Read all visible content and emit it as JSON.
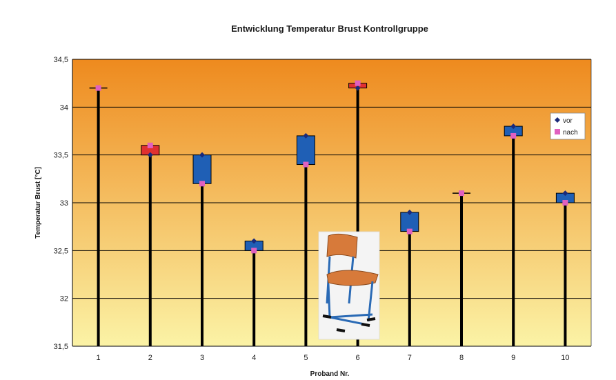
{
  "chart_data": {
    "type": "stock-high-low",
    "title": "Entwicklung Temperatur Brust Kontrollgruppe",
    "xlabel": "Proband Nr.",
    "ylabel": "Temperatur Brust [°C]",
    "ylim": [
      31.5,
      34.5
    ],
    "y_ticks": [
      "31,5",
      "32",
      "32,5",
      "33",
      "33,5",
      "34",
      "34,5"
    ],
    "categories": [
      "1",
      "2",
      "3",
      "4",
      "5",
      "6",
      "7",
      "8",
      "9",
      "10"
    ],
    "series": [
      {
        "name": "vor",
        "values": [
          34.2,
          33.5,
          33.5,
          32.6,
          33.7,
          34.2,
          32.9,
          33.1,
          33.8,
          33.1
        ]
      },
      {
        "name": "nach",
        "values": [
          34.2,
          33.6,
          33.2,
          32.5,
          33.4,
          34.25,
          32.7,
          33.1,
          33.7,
          33.0
        ]
      }
    ],
    "legend_position": "right",
    "grid": true,
    "colors": {
      "vor_marker": "#1a2a7a",
      "nach_marker": "#e060c0",
      "down_box": "#1f5fb5",
      "up_box": "#e03030",
      "bg_top": "#ee8a1e",
      "bg_bottom": "#fbf3a6",
      "stem": "#000000"
    }
  }
}
